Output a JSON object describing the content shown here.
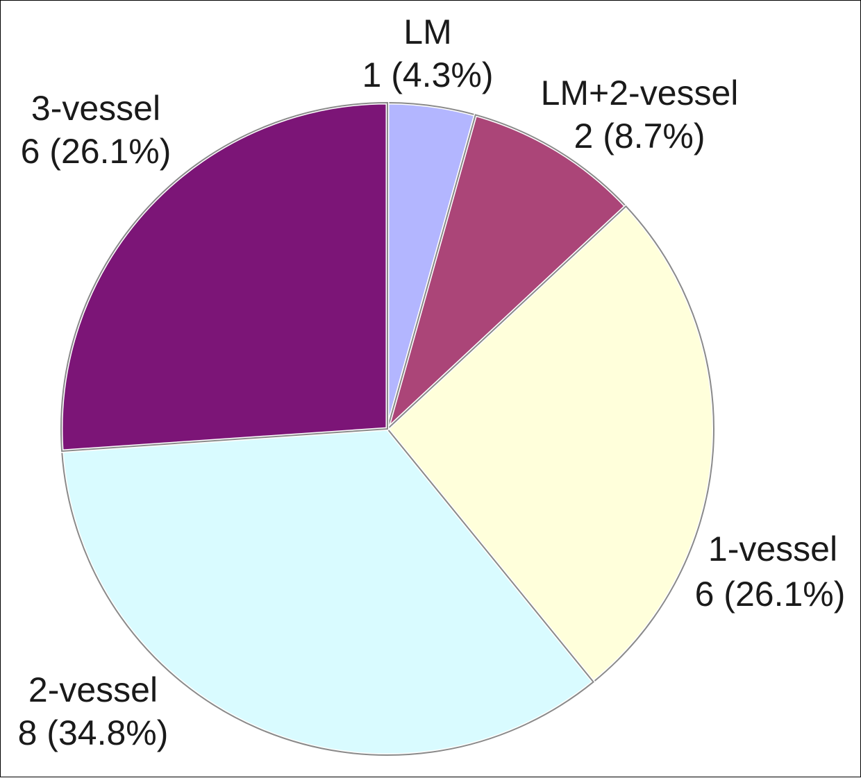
{
  "chart_data": {
    "type": "pie",
    "slices": [
      {
        "category": "LM",
        "value": 1,
        "percent": "4.3%",
        "value_label": "1 (4.3%)",
        "color": "#b3b6ff"
      },
      {
        "category": "LM+2-vessel",
        "value": 2,
        "percent": "8.7%",
        "value_label": "2 (8.7%)",
        "color": "#ab4578"
      },
      {
        "category": "1-vessel",
        "value": 6,
        "percent": "26.1%",
        "value_label": "6 (26.1%)",
        "color": "#ffffdb"
      },
      {
        "category": "2-vessel",
        "value": 8,
        "percent": "34.8%",
        "value_label": "8 (34.8%)",
        "color": "#d9fbff"
      },
      {
        "category": "3-vessel",
        "value": 6,
        "percent": "26.1%",
        "value_label": "6 (26.1%)",
        "color": "#7c1577"
      }
    ],
    "start": "top",
    "direction": "clockwise",
    "legend": "none"
  }
}
